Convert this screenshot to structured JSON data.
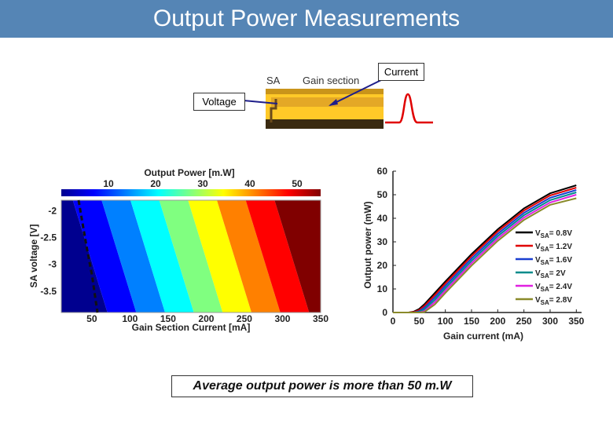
{
  "header": {
    "title": "Output Power Measurements"
  },
  "device": {
    "sa_label": "SA",
    "gain_label": "Gain section",
    "voltage_label": "Voltage",
    "current_label": "Current"
  },
  "note": "Average output power is more than 50 m.W",
  "chart_data": [
    {
      "type": "heatmap",
      "title": "Output Power [m.W]",
      "xlabel": "Gain Section Current [mA]",
      "ylabel": "SA voltage [V]",
      "x_ticks": [
        "50",
        "100",
        "150",
        "200",
        "250",
        "300",
        "350"
      ],
      "y_ticks": [
        "-2",
        "-2.5",
        "-3",
        "-3.5"
      ],
      "colorbar_ticks": [
        "10",
        "20",
        "30",
        "40",
        "50"
      ],
      "xlim": [
        10,
        350
      ],
      "ylim": [
        -3.9,
        -1.8
      ],
      "clim": [
        0,
        55
      ],
      "colors": [
        "#00008f",
        "#0000ff",
        "#0080ff",
        "#00ffff",
        "#80ff80",
        "#ffff00",
        "#ff8000",
        "#ff0000",
        "#800000"
      ]
    },
    {
      "type": "line",
      "xlabel": "Gain current (mA)",
      "ylabel": "Output power (mW)",
      "x_ticks": [
        "0",
        "50",
        "100",
        "150",
        "200",
        "250",
        "300",
        "350"
      ],
      "y_ticks": [
        "0",
        "10",
        "20",
        "30",
        "40",
        "50",
        "60"
      ],
      "xlim": [
        0,
        360
      ],
      "ylim": [
        0,
        60
      ],
      "x": [
        0,
        30,
        40,
        50,
        60,
        80,
        100,
        150,
        200,
        250,
        300,
        350
      ],
      "series": [
        {
          "name": "VSA= 0.8V",
          "sub": "SA",
          "suffix": "= 0.8V",
          "color": "#000000",
          "values": [
            0,
            0,
            0.4,
            1.5,
            3.5,
            8.3,
            13.2,
            24.8,
            35.3,
            44.2,
            50.6,
            54.0
          ]
        },
        {
          "name": "VSA= 1.2V",
          "sub": "SA",
          "suffix": "= 1.2V",
          "color": "#e00000",
          "values": [
            0,
            0,
            0.2,
            1.0,
            2.8,
            7.4,
            12.3,
            23.9,
            34.4,
            43.3,
            49.7,
            53.0
          ]
        },
        {
          "name": "VSA= 1.6V",
          "sub": "SA",
          "suffix": "= 1.6V",
          "color": "#1a3fd0",
          "values": [
            0,
            0,
            0,
            0.5,
            2.0,
            6.4,
            11.3,
            22.9,
            33.4,
            42.3,
            48.7,
            52.0
          ]
        },
        {
          "name": "VSA= 2V",
          "sub": "SA",
          "suffix": "= 2V",
          "color": "#008b8b",
          "values": [
            0,
            0,
            0,
            0.2,
            1.3,
            5.4,
            10.3,
            21.9,
            32.4,
            41.3,
            47.7,
            51.0
          ]
        },
        {
          "name": "VSA= 2.4V",
          "sub": "SA",
          "suffix": "= 2.4V",
          "color": "#e020e0",
          "values": [
            0,
            0,
            0,
            0,
            0.6,
            4.4,
            9.3,
            20.9,
            31.4,
            40.3,
            46.7,
            50.0
          ]
        },
        {
          "name": "VSA= 2.8V",
          "sub": "SA",
          "suffix": "= 2.8V",
          "color": "#8a8a2a",
          "values": [
            0,
            0,
            0,
            0,
            0.2,
            3.4,
            8.3,
            19.9,
            30.4,
            39.3,
            45.7,
            48.5
          ]
        }
      ]
    }
  ]
}
